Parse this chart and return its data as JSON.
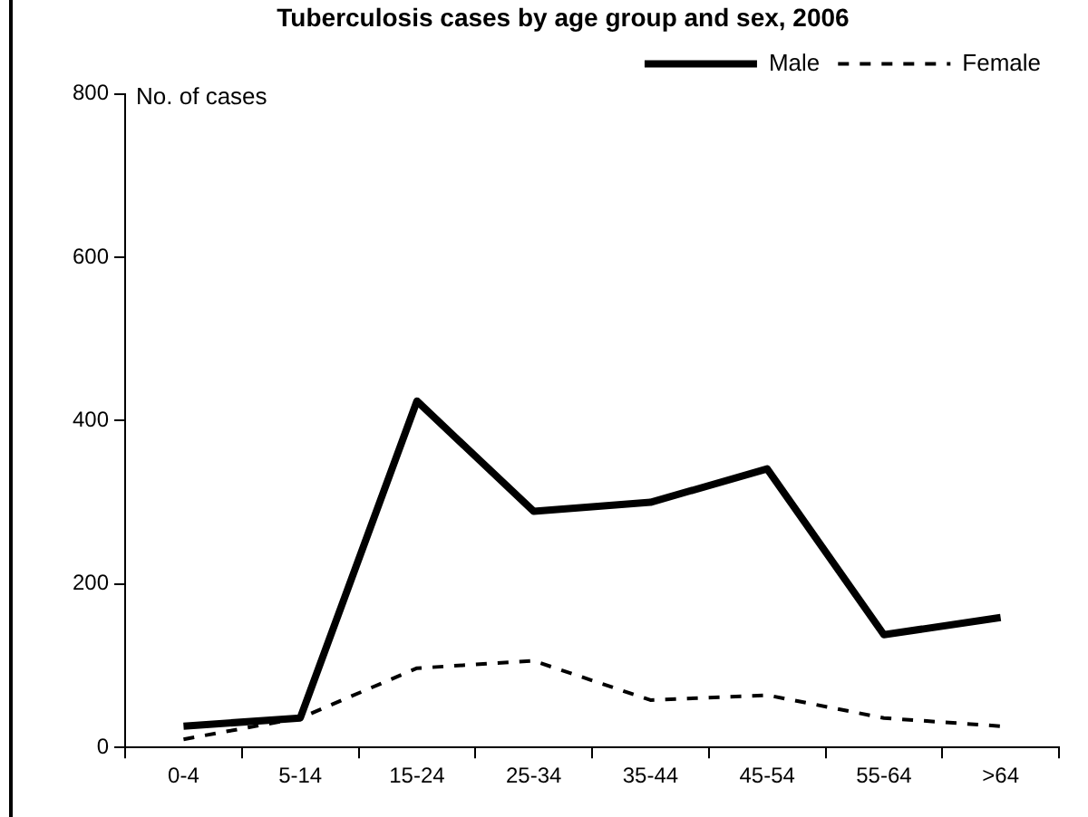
{
  "chart_data": {
    "type": "line",
    "title": "Tuberculosis cases by age group and sex, 2006",
    "ylabel": "No. of cases",
    "categories": [
      "0-4",
      "5-14",
      "15-24",
      "25-34",
      "35-44",
      "45-54",
      "55-64",
      ">64"
    ],
    "series": [
      {
        "name": "Male",
        "color": "#000000",
        "line_style": "solid",
        "values": [
          26,
          36,
          424,
          289,
          300,
          341,
          138,
          159
        ]
      },
      {
        "name": "Female",
        "color": "#000000",
        "line_style": "dashed",
        "values": [
          10,
          36,
          97,
          106,
          58,
          64,
          36,
          26
        ]
      }
    ],
    "ylim": [
      0,
      800
    ],
    "yticks": [
      0,
      200,
      400,
      600,
      800
    ],
    "grid": false,
    "legend": "top right",
    "marker": "none"
  }
}
